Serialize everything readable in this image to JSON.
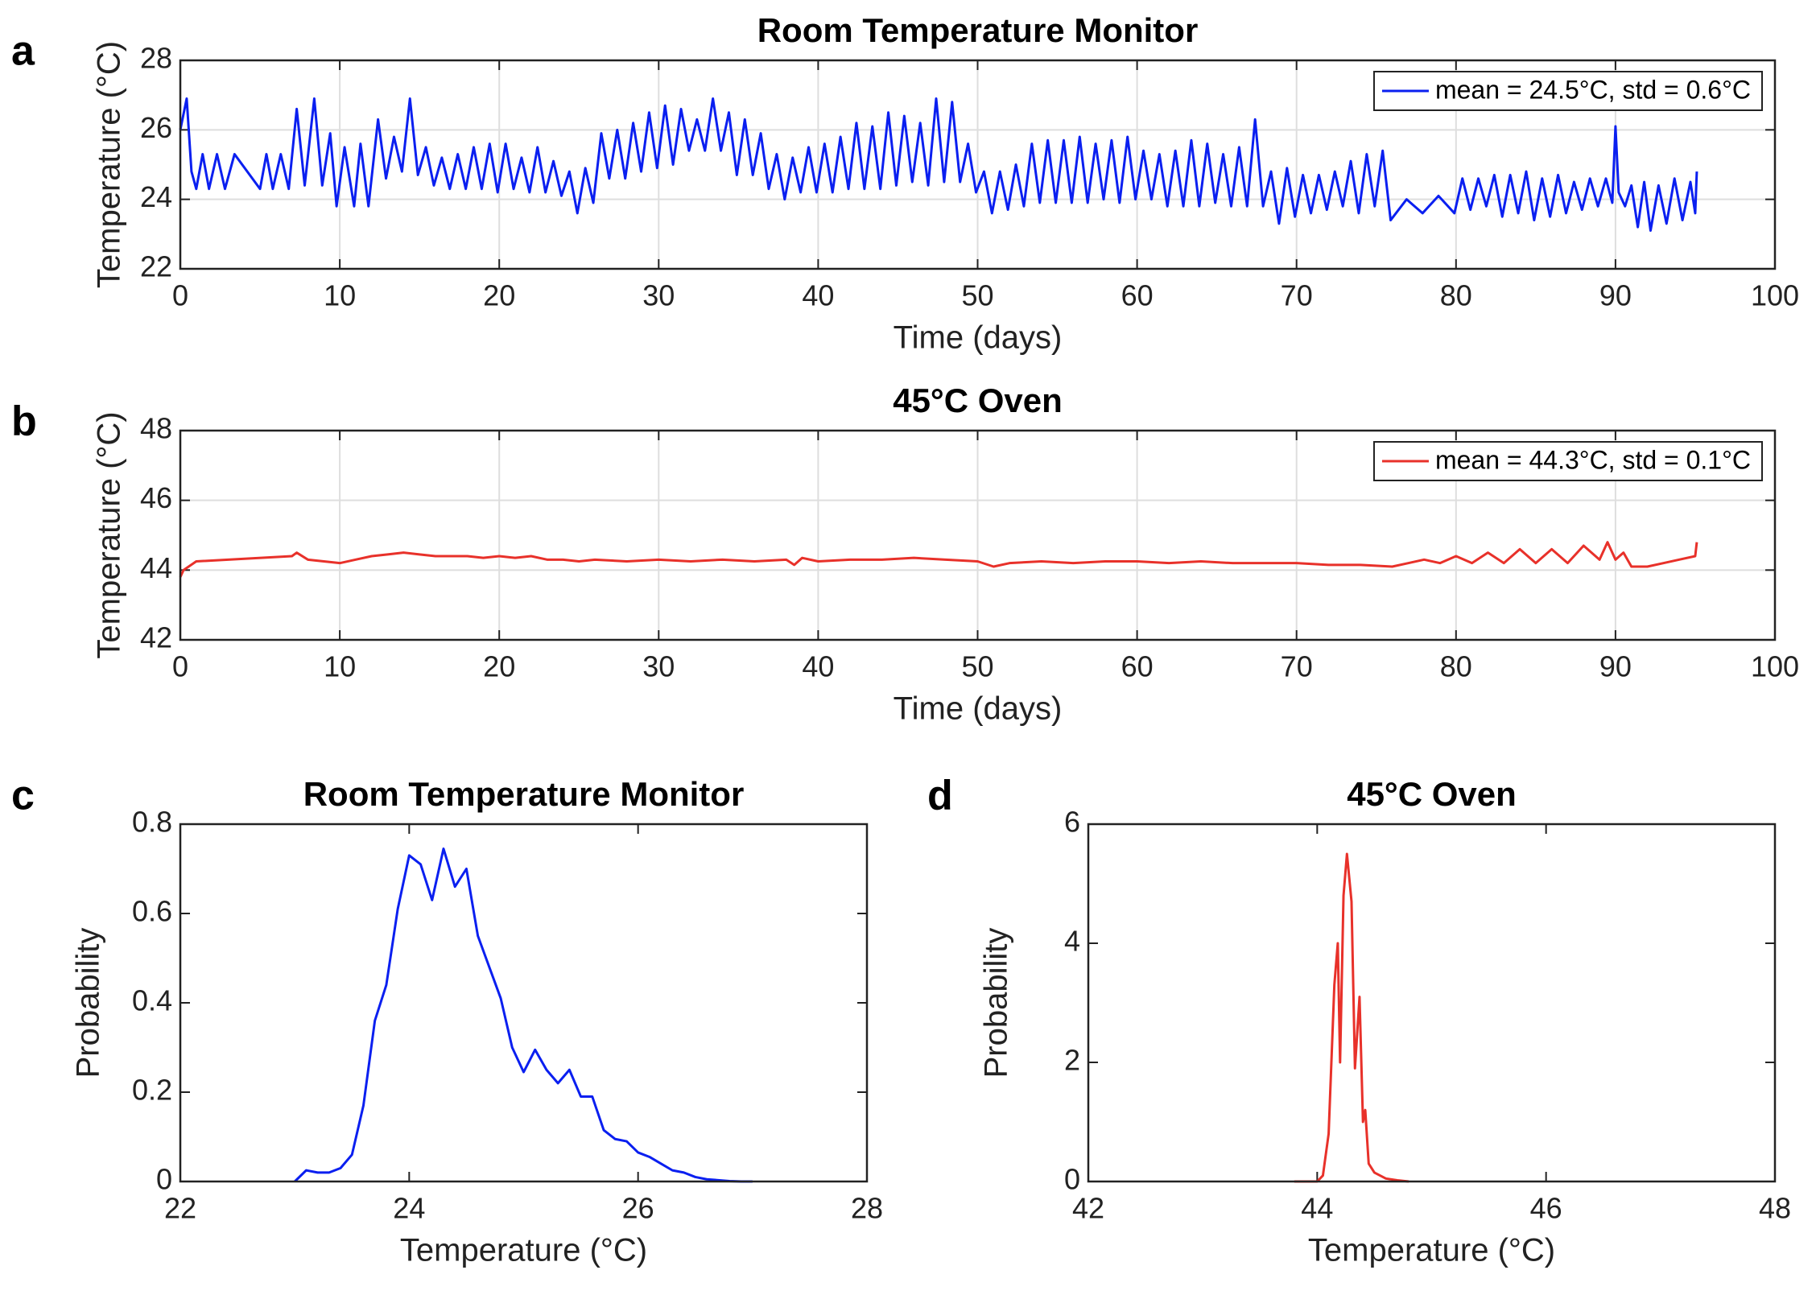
{
  "chart_data": [
    {
      "type": "line",
      "panel": "a",
      "title": "Room Temperature Monitor",
      "xlabel": "Time (days)",
      "ylabel": "Temperature (°C)",
      "x": [
        0,
        0.4,
        0.7,
        1.0,
        1.4,
        1.8,
        2.3,
        2.8,
        3.4,
        5.0,
        5.4,
        5.8,
        6.3,
        6.8,
        7.3,
        7.8,
        8.4,
        8.9,
        9.4,
        9.8,
        10.3,
        10.9,
        11.3,
        11.8,
        12.4,
        12.9,
        13.4,
        13.9,
        14.4,
        14.9,
        15.4,
        15.9,
        16.4,
        16.9,
        17.4,
        17.9,
        18.4,
        18.9,
        19.4,
        19.9,
        20.4,
        20.9,
        21.4,
        21.9,
        22.4,
        22.9,
        23.4,
        23.9,
        24.4,
        24.9,
        25.4,
        25.9,
        26.4,
        26.9,
        27.4,
        27.9,
        28.4,
        28.9,
        29.4,
        29.9,
        30.4,
        30.9,
        31.4,
        31.9,
        32.4,
        32.9,
        33.4,
        33.9,
        34.4,
        34.9,
        35.4,
        35.9,
        36.4,
        36.9,
        37.4,
        37.9,
        38.4,
        38.9,
        39.4,
        39.9,
        40.4,
        40.9,
        41.4,
        41.9,
        42.4,
        42.9,
        43.4,
        43.9,
        44.4,
        44.9,
        45.4,
        45.9,
        46.4,
        46.9,
        47.4,
        47.9,
        48.4,
        48.9,
        49.4,
        49.9,
        50.4,
        50.9,
        51.4,
        51.9,
        52.4,
        52.9,
        53.4,
        53.9,
        54.4,
        54.9,
        55.4,
        55.9,
        56.4,
        56.9,
        57.4,
        57.9,
        58.4,
        58.9,
        59.4,
        59.9,
        60.4,
        60.9,
        61.4,
        61.9,
        62.4,
        62.9,
        63.4,
        63.9,
        64.4,
        64.9,
        65.4,
        65.9,
        66.4,
        66.9,
        67.4,
        67.9,
        68.4,
        68.9,
        69.4,
        69.9,
        70.4,
        70.9,
        71.4,
        71.9,
        72.4,
        72.9,
        73.4,
        73.9,
        74.4,
        74.9,
        75.4,
        75.9,
        76.9,
        77.9,
        78.9,
        79.9,
        80.4,
        80.9,
        81.4,
        81.9,
        82.4,
        82.9,
        83.4,
        83.9,
        84.4,
        84.9,
        85.4,
        85.9,
        86.4,
        86.9,
        87.4,
        87.9,
        88.4,
        88.9,
        89.4,
        89.8,
        90.0,
        90.2,
        90.6,
        91.0,
        91.4,
        91.8,
        92.2,
        92.7,
        93.2,
        93.7,
        94.2,
        94.7,
        95.0,
        95.1
      ],
      "series": [
        {
          "name": "mean = 24.5°C, std = 0.6°C",
          "color": "#0a1ff0",
          "values": [
            26.0,
            26.9,
            24.8,
            24.3,
            25.3,
            24.3,
            25.3,
            24.3,
            25.3,
            24.3,
            25.3,
            24.3,
            25.3,
            24.3,
            26.6,
            24.4,
            26.9,
            24.4,
            25.9,
            23.8,
            25.5,
            23.8,
            25.6,
            23.8,
            26.3,
            24.6,
            25.8,
            24.8,
            26.9,
            24.7,
            25.5,
            24.4,
            25.2,
            24.3,
            25.3,
            24.3,
            25.5,
            24.3,
            25.6,
            24.2,
            25.6,
            24.3,
            25.2,
            24.2,
            25.5,
            24.2,
            25.1,
            24.1,
            24.8,
            23.6,
            24.9,
            23.9,
            25.9,
            24.6,
            26.0,
            24.6,
            26.2,
            24.8,
            26.5,
            24.9,
            26.7,
            25.0,
            26.6,
            25.4,
            26.3,
            25.4,
            26.9,
            25.4,
            26.5,
            24.7,
            26.3,
            24.7,
            25.9,
            24.3,
            25.3,
            24.0,
            25.2,
            24.2,
            25.5,
            24.2,
            25.6,
            24.2,
            25.8,
            24.3,
            26.2,
            24.3,
            26.1,
            24.3,
            26.5,
            24.4,
            26.4,
            24.5,
            26.2,
            24.4,
            26.9,
            24.5,
            26.8,
            24.5,
            25.6,
            24.2,
            24.8,
            23.6,
            24.8,
            23.7,
            25.0,
            23.8,
            25.6,
            23.9,
            25.7,
            23.9,
            25.7,
            23.9,
            25.8,
            23.9,
            25.6,
            24.0,
            25.7,
            23.9,
            25.8,
            24.0,
            25.4,
            24.0,
            25.3,
            23.8,
            25.4,
            23.8,
            25.7,
            23.8,
            25.6,
            23.9,
            25.3,
            23.8,
            25.5,
            23.8,
            26.3,
            23.8,
            24.8,
            23.3,
            24.9,
            23.5,
            24.7,
            23.6,
            24.7,
            23.7,
            24.8,
            23.8,
            25.1,
            23.6,
            25.3,
            23.8,
            25.4,
            23.4,
            24.0,
            23.6,
            24.1,
            23.6,
            24.6,
            23.7,
            24.6,
            23.8,
            24.7,
            23.5,
            24.7,
            23.6,
            24.8,
            23.4,
            24.6,
            23.5,
            24.7,
            23.6,
            24.5,
            23.7,
            24.6,
            23.8,
            24.6,
            23.9,
            26.1,
            24.2,
            23.8,
            24.4,
            23.2,
            24.5,
            23.1,
            24.4,
            23.3,
            24.6,
            23.4,
            24.5,
            23.6,
            24.8
          ]
        }
      ],
      "xlim": [
        0,
        100
      ],
      "xticks": [
        0,
        10,
        20,
        30,
        40,
        50,
        60,
        70,
        80,
        90,
        100
      ],
      "ylim": [
        22,
        28
      ],
      "yticks": [
        22,
        24,
        26,
        28
      ],
      "grid": true,
      "legend": "upper right"
    },
    {
      "type": "line",
      "panel": "b",
      "title": "45°C Oven",
      "xlabel": "Time (days)",
      "ylabel": "Temperature (°C)",
      "x": [
        0,
        0.2,
        1.0,
        7.0,
        7.3,
        8,
        9,
        10,
        11,
        12,
        13,
        14,
        15,
        16,
        17,
        18,
        19,
        20,
        21,
        22,
        23,
        24,
        25,
        26,
        28,
        30,
        32,
        34,
        36,
        38,
        38.5,
        39,
        40,
        42,
        44,
        46,
        48,
        50,
        51,
        52,
        54,
        56,
        58,
        60,
        62,
        64,
        66,
        68,
        70,
        72,
        74,
        76,
        77,
        78,
        79,
        80,
        81,
        82,
        83,
        84,
        85,
        86,
        87,
        88,
        89,
        89.5,
        90,
        90.5,
        91,
        92,
        93,
        94,
        95,
        95.1
      ],
      "series": [
        {
          "name": "mean = 44.3°C, std = 0.1°C",
          "color": "#e8312a",
          "values": [
            43.8,
            44.0,
            44.25,
            44.4,
            44.5,
            44.3,
            44.25,
            44.2,
            44.3,
            44.4,
            44.45,
            44.5,
            44.45,
            44.4,
            44.4,
            44.4,
            44.35,
            44.4,
            44.35,
            44.4,
            44.3,
            44.3,
            44.25,
            44.3,
            44.25,
            44.3,
            44.25,
            44.3,
            44.25,
            44.3,
            44.15,
            44.35,
            44.25,
            44.3,
            44.3,
            44.35,
            44.3,
            44.25,
            44.1,
            44.2,
            44.25,
            44.2,
            44.25,
            44.25,
            44.2,
            44.25,
            44.2,
            44.2,
            44.2,
            44.15,
            44.15,
            44.1,
            44.2,
            44.3,
            44.2,
            44.4,
            44.2,
            44.5,
            44.2,
            44.6,
            44.2,
            44.6,
            44.2,
            44.7,
            44.3,
            44.8,
            44.3,
            44.5,
            44.1,
            44.1,
            44.2,
            44.3,
            44.4,
            44.8
          ]
        }
      ],
      "xlim": [
        0,
        100
      ],
      "xticks": [
        0,
        10,
        20,
        30,
        40,
        50,
        60,
        70,
        80,
        90,
        100
      ],
      "ylim": [
        42,
        48
      ],
      "yticks": [
        42,
        44,
        46,
        48
      ],
      "grid": true,
      "legend": "upper right"
    },
    {
      "type": "line",
      "panel": "c",
      "title": "Room Temperature Monitor",
      "xlabel": "Temperature (°C)",
      "ylabel": "Probability",
      "x": [
        23.0,
        23.1,
        23.2,
        23.3,
        23.4,
        23.5,
        23.6,
        23.7,
        23.8,
        23.9,
        24.0,
        24.1,
        24.2,
        24.3,
        24.4,
        24.5,
        24.6,
        24.7,
        24.8,
        24.9,
        25.0,
        25.1,
        25.2,
        25.3,
        25.4,
        25.5,
        25.6,
        25.7,
        25.8,
        25.9,
        26.0,
        26.1,
        26.2,
        26.3,
        26.4,
        26.5,
        26.6,
        26.7,
        26.8,
        26.9,
        27.0
      ],
      "series": [
        {
          "color": "#0a1ff0",
          "values": [
            0,
            0.025,
            0.02,
            0.02,
            0.03,
            0.06,
            0.17,
            0.36,
            0.44,
            0.61,
            0.73,
            0.71,
            0.63,
            0.745,
            0.66,
            0.7,
            0.55,
            0.48,
            0.41,
            0.3,
            0.245,
            0.295,
            0.25,
            0.22,
            0.25,
            0.19,
            0.19,
            0.115,
            0.095,
            0.09,
            0.065,
            0.055,
            0.04,
            0.025,
            0.02,
            0.01,
            0.005,
            0.003,
            0.001,
            0,
            0
          ]
        }
      ],
      "xlim": [
        22,
        28
      ],
      "xticks": [
        22,
        24,
        26,
        28
      ],
      "ylim": [
        0,
        0.8
      ],
      "yticks": [
        0,
        0.2,
        0.4,
        0.6,
        0.8
      ],
      "grid": false
    },
    {
      "type": "line",
      "panel": "d",
      "title": "45°C Oven",
      "xlabel": "Temperature (°C)",
      "ylabel": "Probability",
      "x": [
        43.8,
        44.0,
        44.05,
        44.1,
        44.15,
        44.18,
        44.2,
        44.23,
        44.26,
        44.3,
        44.33,
        44.37,
        44.4,
        44.42,
        44.45,
        44.5,
        44.6,
        44.7,
        44.8
      ],
      "series": [
        {
          "color": "#e8312a",
          "values": [
            0,
            0,
            0.1,
            0.8,
            3.3,
            4.0,
            2.0,
            4.8,
            5.5,
            4.7,
            1.9,
            3.1,
            1.0,
            1.2,
            0.3,
            0.15,
            0.05,
            0.02,
            0
          ]
        }
      ],
      "xlim": [
        42,
        48
      ],
      "xticks": [
        42,
        44,
        46,
        48
      ],
      "ylim": [
        0,
        6
      ],
      "yticks": [
        0,
        2,
        4,
        6
      ],
      "grid": false
    }
  ]
}
